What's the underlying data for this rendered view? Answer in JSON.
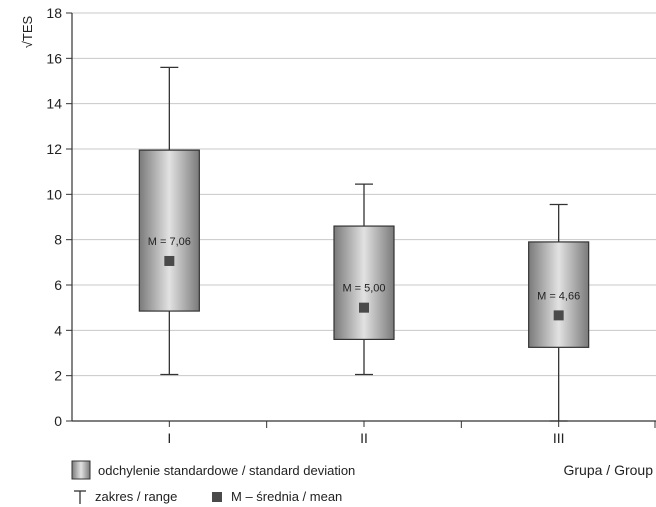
{
  "chart_data": {
    "type": "box",
    "ylabel": "√TES",
    "xlabel": "Grupa / Group",
    "ylim": [
      0,
      18
    ],
    "yticks": [
      0,
      2,
      4,
      6,
      8,
      10,
      12,
      14,
      16,
      18
    ],
    "grid": true,
    "categories": [
      "I",
      "II",
      "III"
    ],
    "groups": [
      {
        "category": "I",
        "mean": 7.06,
        "mean_label": "M = 7,06",
        "sd_low": 4.85,
        "sd_high": 11.95,
        "range_low": 2.05,
        "range_high": 15.6
      },
      {
        "category": "II",
        "mean": 5.0,
        "mean_label": "M = 5,00",
        "sd_low": 3.6,
        "sd_high": 8.6,
        "range_low": 2.05,
        "range_high": 10.45
      },
      {
        "category": "III",
        "mean": 4.66,
        "mean_label": "M = 4,66",
        "sd_low": 3.25,
        "sd_high": 7.9,
        "range_low": 0.0,
        "range_high": 9.55
      }
    ],
    "legend": {
      "position": "bottom-left",
      "sd_label": "odchylenie standardowe / standard deviation",
      "range_label": "zakres / range",
      "mean_label": "M – średnia / mean"
    },
    "colors": {
      "box_edge": "#7a7a7a",
      "box_mid": "#d9d9d9",
      "mean_marker": "#4a4a4a",
      "grid": "#c8c8c8",
      "axis": "#333333"
    }
  }
}
